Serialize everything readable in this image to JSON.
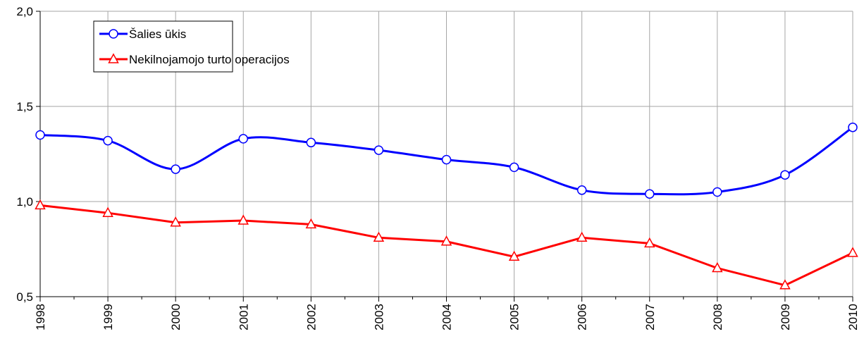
{
  "chart_data": {
    "type": "line",
    "categories": [
      "1998",
      "1999",
      "2000",
      "2001",
      "2002",
      "2003",
      "2004",
      "2005",
      "2006",
      "2007",
      "2008",
      "2009",
      "2010"
    ],
    "series": [
      {
        "name": "Šalies ūkis",
        "color": "#0000ff",
        "marker": "circle",
        "smooth": true,
        "values": [
          1.35,
          1.32,
          1.17,
          1.33,
          1.31,
          1.27,
          1.22,
          1.18,
          1.06,
          1.04,
          1.05,
          1.14,
          1.39
        ]
      },
      {
        "name": "Nekilnojamojo turto operacijos",
        "color": "#ff0000",
        "marker": "triangle",
        "smooth": false,
        "values": [
          0.98,
          0.94,
          0.89,
          0.9,
          0.88,
          0.81,
          0.79,
          0.71,
          0.81,
          0.78,
          0.65,
          0.56,
          0.73
        ]
      }
    ],
    "ylim": [
      0.5,
      2.0
    ],
    "yticks": [
      {
        "value": 0.5,
        "label": "0,5"
      },
      {
        "value": 1.0,
        "label": "1,0"
      },
      {
        "value": 1.5,
        "label": "1,5"
      },
      {
        "value": 2.0,
        "label": "2,0"
      }
    ],
    "grid": true,
    "legend": "upper left"
  }
}
